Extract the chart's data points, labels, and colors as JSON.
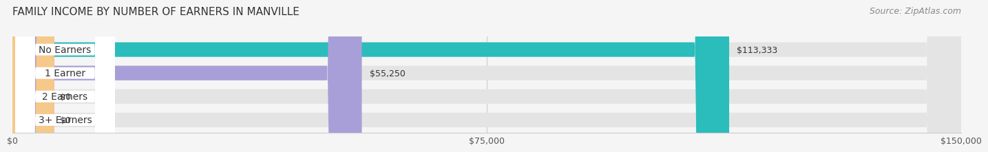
{
  "title": "FAMILY INCOME BY NUMBER OF EARNERS IN MANVILLE",
  "source": "Source: ZipAtlas.com",
  "categories": [
    "No Earners",
    "1 Earner",
    "2 Earners",
    "3+ Earners"
  ],
  "values": [
    113333,
    55250,
    0,
    0
  ],
  "bar_colors": [
    "#2bbcbc",
    "#a89fd8",
    "#f4909a",
    "#f5c98a"
  ],
  "value_labels": [
    "$113,333",
    "$55,250",
    "$0",
    "$0"
  ],
  "xlim": [
    0,
    150000
  ],
  "xticks": [
    0,
    75000,
    150000
  ],
  "xtick_labels": [
    "$0",
    "$75,000",
    "$150,000"
  ],
  "title_fontsize": 11,
  "source_fontsize": 9,
  "label_fontsize": 10,
  "value_fontsize": 9
}
